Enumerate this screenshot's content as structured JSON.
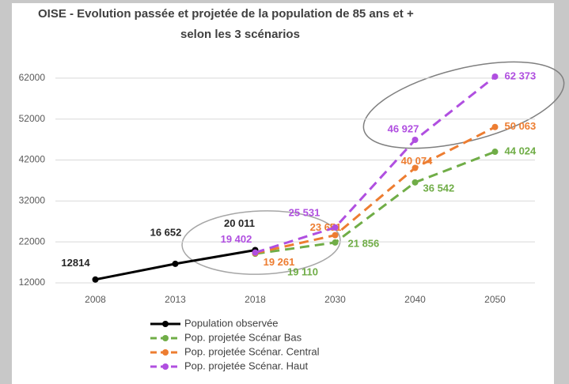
{
  "chart_data": {
    "type": "line",
    "title": [
      "OISE - Evolution passée et projetée de la population de 85 ans et +",
      "selon les 3 scénarios"
    ],
    "categories": [
      "2008",
      "2013",
      "2018",
      "2030",
      "2040",
      "2050"
    ],
    "ylim": [
      12000,
      67000
    ],
    "yticks": [
      12000,
      22000,
      32000,
      42000,
      52000,
      62000
    ],
    "grid": true,
    "legend": "bottom",
    "series": [
      {
        "name": "Population observée",
        "color": "#000000",
        "dashed": false,
        "values": [
          12814,
          16652,
          20011,
          null,
          null,
          null
        ],
        "value_labels": [
          "12814",
          "16 652",
          "20 011",
          null,
          null,
          null
        ]
      },
      {
        "name": "Pop. projetée Scénar Bas",
        "color": "#70ad47",
        "dashed": true,
        "values": [
          null,
          null,
          19110,
          21856,
          36542,
          44024
        ],
        "value_labels": [
          null,
          null,
          "19 110",
          "21 856",
          "36 542",
          "44 024"
        ]
      },
      {
        "name": "Pop. projetée Scénar. Central",
        "color": "#ed7d31",
        "dashed": true,
        "values": [
          null,
          null,
          19261,
          23651,
          40074,
          50063
        ],
        "value_labels": [
          null,
          null,
          "19 261",
          "23 651",
          "40 074",
          "50 063"
        ]
      },
      {
        "name": "Pop. projetée Scénar. Haut",
        "color": "#b04fe0",
        "dashed": true,
        "values": [
          null,
          null,
          19402,
          25531,
          46927,
          62373
        ],
        "value_labels": [
          null,
          null,
          "19 402",
          "25 531",
          "46 927",
          "62 373"
        ]
      }
    ]
  }
}
